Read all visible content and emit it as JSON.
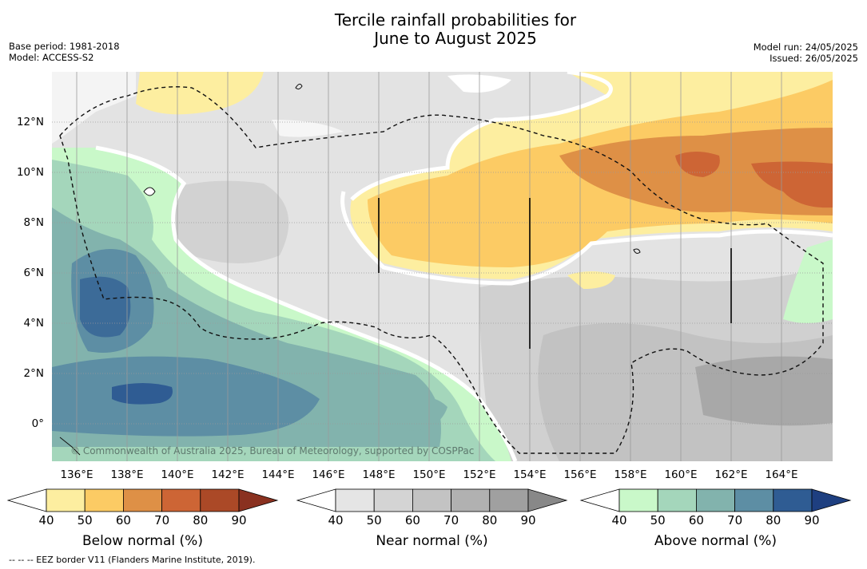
{
  "title_line1": "Tercile rainfall probabilities for",
  "title_line2": "June to August 2025",
  "base_period": "Base period: 1981-2018",
  "model": "Model: ACCESS-S2",
  "model_run": "Model run: 24/05/2025",
  "issued": "Issued: 26/05/2025",
  "watermark": "© Commonwealth of Australia 2025, Bureau of Meteorology, supported by COSPPac",
  "footnote": "--  --  -- EEZ border V11 (Flanders Marine Institute, 2019).",
  "lon_labels": [
    "136°E",
    "138°E",
    "140°E",
    "142°E",
    "144°E",
    "146°E",
    "148°E",
    "150°E",
    "152°E",
    "154°E",
    "156°E",
    "158°E",
    "160°E",
    "162°E",
    "164°E"
  ],
  "lat_labels": [
    "12°N",
    "10°N",
    "8°N",
    "6°N",
    "4°N",
    "2°N",
    "0°"
  ],
  "colorbars": [
    {
      "title": "Below normal (%)",
      "ticks": [
        "40",
        "50",
        "60",
        "70",
        "80",
        "90"
      ],
      "colors": [
        "#ffffff",
        "#fdeea0",
        "#fccb64",
        "#de9046",
        "#cd6535",
        "#ab4927",
        "#8a3120"
      ]
    },
    {
      "title": "Near normal (%)",
      "ticks": [
        "40",
        "50",
        "60",
        "70",
        "80",
        "90"
      ],
      "colors": [
        "#ffffff",
        "#e5e5e5",
        "#d4d4d4",
        "#c3c3c3",
        "#b1b1b1",
        "#a0a0a0",
        "#888888"
      ]
    },
    {
      "title": "Above normal (%)",
      "ticks": [
        "40",
        "50",
        "60",
        "70",
        "80",
        "90"
      ],
      "colors": [
        "#ffffff",
        "#c9f8c9",
        "#a4d6bb",
        "#82b3ad",
        "#5d8ea4",
        "#2f5c93",
        "#1e3f80"
      ]
    }
  ]
}
